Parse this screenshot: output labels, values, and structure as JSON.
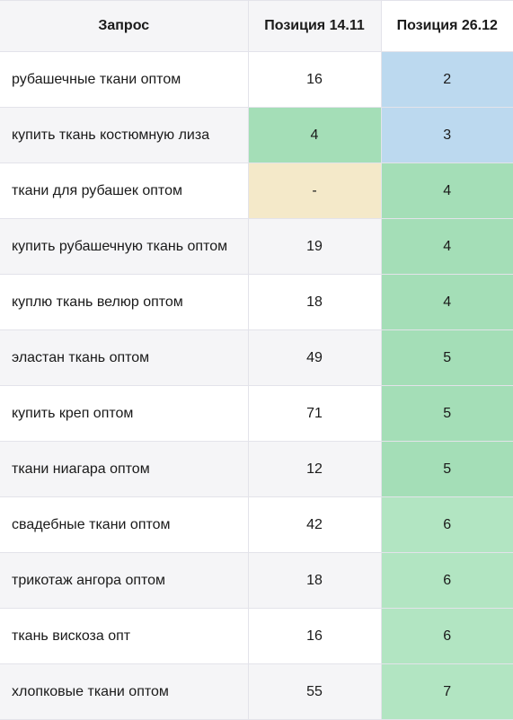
{
  "header": {
    "query": "Запрос",
    "pos1": "Позиция 14.11",
    "pos2": "Позиция 26.12"
  },
  "colors": {
    "blue": "#bcd9ef",
    "green": "#a4deb7",
    "light_green": "#b2e5c2",
    "beige": "#f4e9c9"
  },
  "rows": [
    {
      "query": "рубашечные ткани оптом",
      "pos1": "16",
      "pos2": "2"
    },
    {
      "query": "купить ткань костюмную лиза",
      "pos1": "4",
      "pos2": "3"
    },
    {
      "query": "ткани для рубашек оптом",
      "pos1": "-",
      "pos2": "4"
    },
    {
      "query": "купить рубашечную ткань оптом",
      "pos1": "19",
      "pos2": "4"
    },
    {
      "query": "куплю ткань велюр оптом",
      "pos1": "18",
      "pos2": "4"
    },
    {
      "query": "эластан ткань оптом",
      "pos1": "49",
      "pos2": "5"
    },
    {
      "query": "купить креп оптом",
      "pos1": "71",
      "pos2": "5"
    },
    {
      "query": "ткани ниагара оптом",
      "pos1": "12",
      "pos2": "5"
    },
    {
      "query": "свадебные ткани оптом",
      "pos1": "42",
      "pos2": "6"
    },
    {
      "query": "трикотаж ангора оптом",
      "pos1": "18",
      "pos2": "6"
    },
    {
      "query": "ткань вискоза опт",
      "pos1": "16",
      "pos2": "6"
    },
    {
      "query": "хлопковые ткани оптом",
      "pos1": "55",
      "pos2": "7"
    }
  ]
}
